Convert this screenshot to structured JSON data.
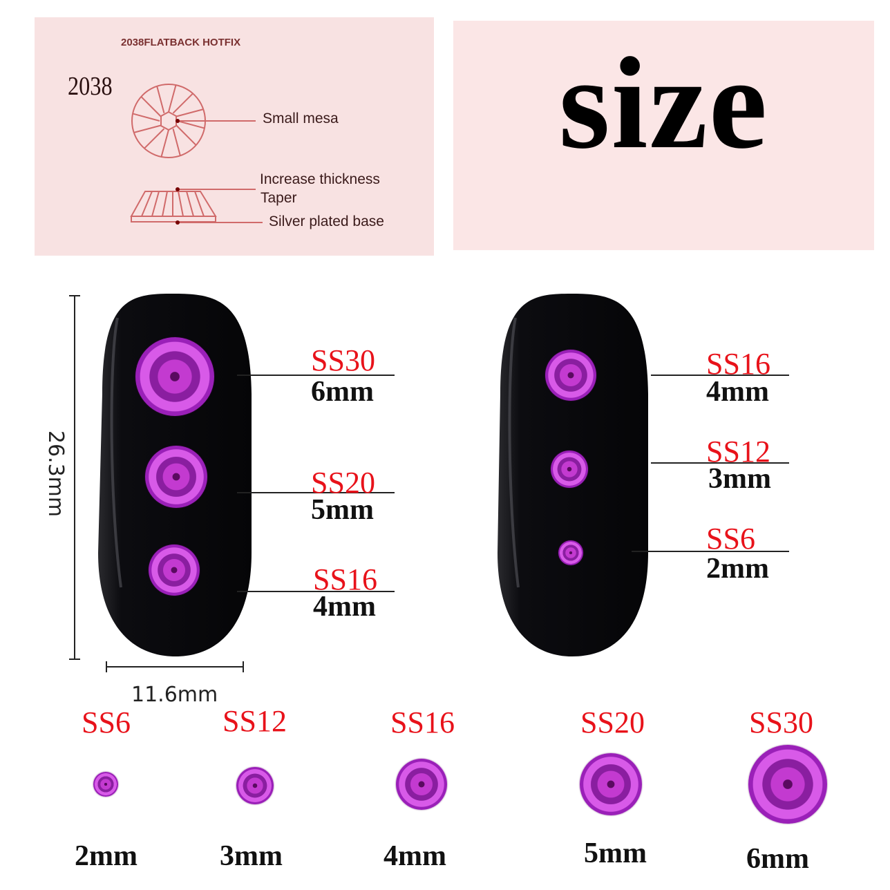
{
  "diagram": {
    "title": "2038FLATBACK HOTFIX",
    "model": "2038",
    "labels": [
      "Small mesa",
      "Increase thickness",
      "Taper",
      "Silver plated base"
    ]
  },
  "headline": "size",
  "dimensions": {
    "height": "26.3mm",
    "width": "11.6mm"
  },
  "nail_left": [
    {
      "ss": "SS30",
      "mm": "6mm"
    },
    {
      "ss": "SS20",
      "mm": "5mm"
    },
    {
      "ss": "SS16",
      "mm": "4mm"
    }
  ],
  "nail_right": [
    {
      "ss": "SS16",
      "mm": "4mm"
    },
    {
      "ss": "SS12",
      "mm": "3mm"
    },
    {
      "ss": "SS6",
      "mm": "2mm"
    }
  ],
  "sizes": [
    {
      "ss": "SS6",
      "mm": "2mm"
    },
    {
      "ss": "SS12",
      "mm": "3mm"
    },
    {
      "ss": "SS16",
      "mm": "4mm"
    },
    {
      "ss": "SS20",
      "mm": "5mm"
    },
    {
      "ss": "SS30",
      "mm": "6mm"
    }
  ],
  "colors": {
    "label_red": "#e8121a",
    "gem": "#c33ad0",
    "panel": "#f8e2e2",
    "diagram_line": "#d06a6a"
  }
}
